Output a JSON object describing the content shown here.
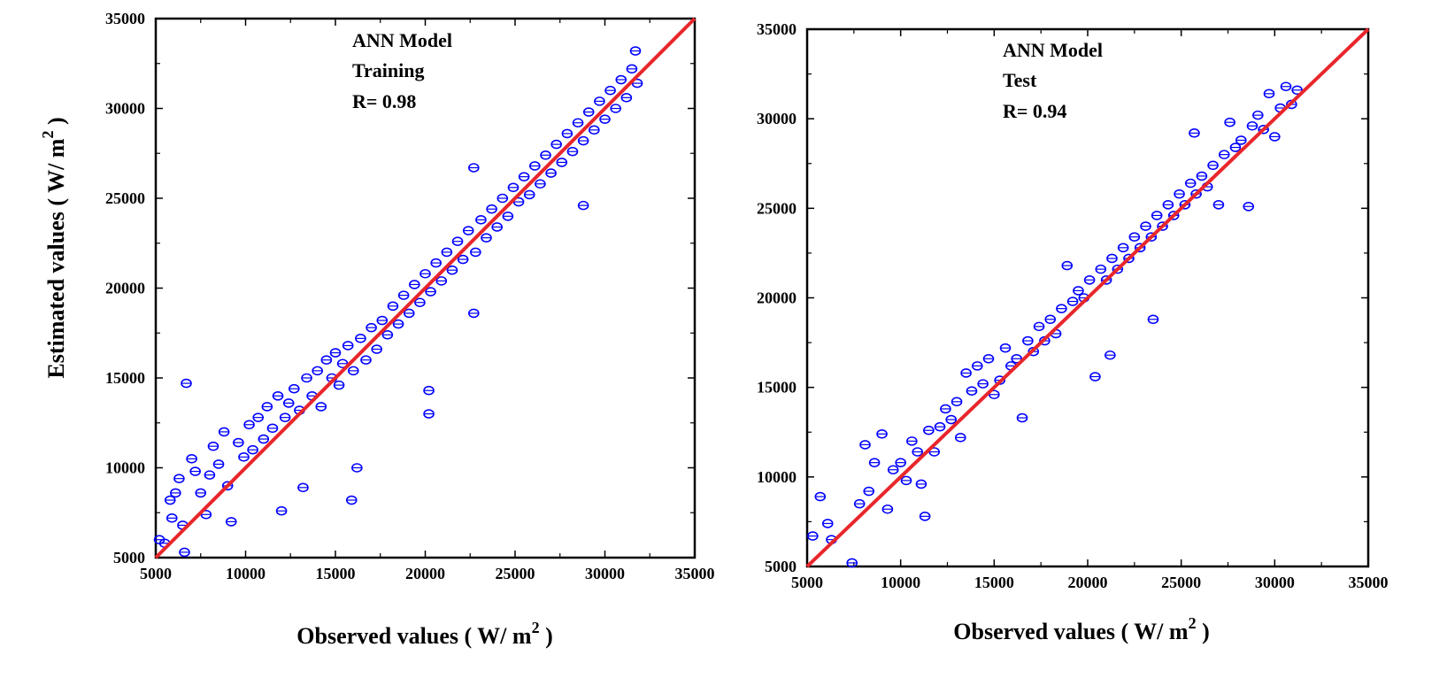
{
  "chart_data": [
    {
      "type": "scatter",
      "annotation": [
        "ANN Model",
        "Training",
        "R= 0.98"
      ],
      "xlabel": "Observed values ( W/ m",
      "ylabel": "Estimated values ( W/ m",
      "label_superscript": "2",
      "label_close": " )",
      "xlim": [
        5000,
        35000
      ],
      "ylim": [
        5000,
        35000
      ],
      "xticks": [
        "5000",
        "10000",
        "15000",
        "20000",
        "25000",
        "30000",
        "35000"
      ],
      "yticks": [
        "5000",
        "10000",
        "15000",
        "20000",
        "25000",
        "30000",
        "35000"
      ],
      "fit_line": [
        [
          5000,
          5000
        ],
        [
          35000,
          35000
        ]
      ],
      "grid": false,
      "series": [
        {
          "marker": "open-circle",
          "points": [
            [
              5200,
              6000
            ],
            [
              5500,
              5800
            ],
            [
              5800,
              8200
            ],
            [
              5900,
              7200
            ],
            [
              6100,
              8600
            ],
            [
              6300,
              9400
            ],
            [
              6500,
              6800
            ],
            [
              6700,
              14700
            ],
            [
              6600,
              5300
            ],
            [
              7000,
              10500
            ],
            [
              7200,
              9800
            ],
            [
              7500,
              8600
            ],
            [
              7800,
              7400
            ],
            [
              8000,
              9600
            ],
            [
              8200,
              11200
            ],
            [
              8500,
              10200
            ],
            [
              8800,
              12000
            ],
            [
              9000,
              9000
            ],
            [
              9200,
              7000
            ],
            [
              9600,
              11400
            ],
            [
              9900,
              10600
            ],
            [
              10200,
              12400
            ],
            [
              10400,
              11000
            ],
            [
              10700,
              12800
            ],
            [
              11000,
              11600
            ],
            [
              11200,
              13400
            ],
            [
              11500,
              12200
            ],
            [
              11800,
              14000
            ],
            [
              12000,
              7600
            ],
            [
              12200,
              12800
            ],
            [
              12400,
              13600
            ],
            [
              12700,
              14400
            ],
            [
              13000,
              13200
            ],
            [
              13200,
              8900
            ],
            [
              13400,
              15000
            ],
            [
              13700,
              14000
            ],
            [
              14000,
              15400
            ],
            [
              14200,
              13400
            ],
            [
              14500,
              16000
            ],
            [
              14800,
              15000
            ],
            [
              15000,
              16400
            ],
            [
              15200,
              14600
            ],
            [
              15400,
              15800
            ],
            [
              15700,
              16800
            ],
            [
              15900,
              8200
            ],
            [
              16000,
              15400
            ],
            [
              16200,
              10000
            ],
            [
              16400,
              17200
            ],
            [
              16700,
              16000
            ],
            [
              17000,
              17800
            ],
            [
              17300,
              16600
            ],
            [
              17600,
              18200
            ],
            [
              17900,
              17400
            ],
            [
              18200,
              19000
            ],
            [
              18500,
              18000
            ],
            [
              18800,
              19600
            ],
            [
              19100,
              18600
            ],
            [
              19400,
              20200
            ],
            [
              19700,
              19200
            ],
            [
              20000,
              20800
            ],
            [
              20200,
              14300
            ],
            [
              20200,
              13000
            ],
            [
              20300,
              19800
            ],
            [
              20600,
              21400
            ],
            [
              20900,
              20400
            ],
            [
              21200,
              22000
            ],
            [
              21500,
              21000
            ],
            [
              21800,
              22600
            ],
            [
              22100,
              21600
            ],
            [
              22400,
              23200
            ],
            [
              22700,
              26700
            ],
            [
              22700,
              18600
            ],
            [
              22800,
              22000
            ],
            [
              23100,
              23800
            ],
            [
              23400,
              22800
            ],
            [
              23700,
              24400
            ],
            [
              24000,
              23400
            ],
            [
              24300,
              25000
            ],
            [
              24600,
              24000
            ],
            [
              24900,
              25600
            ],
            [
              25200,
              24800
            ],
            [
              25500,
              26200
            ],
            [
              25800,
              25200
            ],
            [
              26100,
              26800
            ],
            [
              26400,
              25800
            ],
            [
              26700,
              27400
            ],
            [
              27000,
              26400
            ],
            [
              27300,
              28000
            ],
            [
              27600,
              27000
            ],
            [
              27900,
              28600
            ],
            [
              28200,
              27600
            ],
            [
              28500,
              29200
            ],
            [
              28800,
              24600
            ],
            [
              28800,
              28200
            ],
            [
              29100,
              29800
            ],
            [
              29400,
              28800
            ],
            [
              29700,
              30400
            ],
            [
              30000,
              29400
            ],
            [
              30300,
              31000
            ],
            [
              30600,
              30000
            ],
            [
              30900,
              31600
            ],
            [
              31200,
              30600
            ],
            [
              31500,
              32200
            ],
            [
              31700,
              33200
            ],
            [
              31800,
              31400
            ]
          ]
        }
      ]
    },
    {
      "type": "scatter",
      "annotation": [
        "ANN Model",
        "Test",
        "R= 0.94"
      ],
      "xlabel": "Observed values ( W/ m",
      "ylabel": "",
      "label_superscript": "2",
      "label_close": " )",
      "xlim": [
        5000,
        35000
      ],
      "ylim": [
        5000,
        35000
      ],
      "xticks": [
        "5000",
        "10000",
        "15000",
        "20000",
        "25000",
        "30000",
        "35000"
      ],
      "yticks": [
        "5000",
        "10000",
        "15000",
        "20000",
        "25000",
        "30000",
        "35000"
      ],
      "fit_line": [
        [
          5000,
          5000
        ],
        [
          35000,
          35000
        ]
      ],
      "grid": false,
      "series": [
        {
          "marker": "open-circle",
          "points": [
            [
              5300,
              6700
            ],
            [
              5700,
              8900
            ],
            [
              6100,
              7400
            ],
            [
              6300,
              6500
            ],
            [
              7400,
              5200
            ],
            [
              7800,
              8500
            ],
            [
              8100,
              11800
            ],
            [
              8300,
              9200
            ],
            [
              8600,
              10800
            ],
            [
              9000,
              12400
            ],
            [
              9300,
              8200
            ],
            [
              9600,
              10400
            ],
            [
              10000,
              10800
            ],
            [
              10300,
              9800
            ],
            [
              10600,
              12000
            ],
            [
              10900,
              11400
            ],
            [
              11100,
              9600
            ],
            [
              11300,
              7800
            ],
            [
              11500,
              12600
            ],
            [
              11800,
              11400
            ],
            [
              12100,
              12800
            ],
            [
              12400,
              13800
            ],
            [
              12700,
              13200
            ],
            [
              13000,
              14200
            ],
            [
              13200,
              12200
            ],
            [
              13500,
              15800
            ],
            [
              13800,
              14800
            ],
            [
              14100,
              16200
            ],
            [
              14400,
              15200
            ],
            [
              14700,
              16600
            ],
            [
              15000,
              14600
            ],
            [
              15300,
              15400
            ],
            [
              15600,
              17200
            ],
            [
              15900,
              16200
            ],
            [
              16200,
              16600
            ],
            [
              16500,
              13300
            ],
            [
              16800,
              17600
            ],
            [
              17100,
              17000
            ],
            [
              17400,
              18400
            ],
            [
              17700,
              17600
            ],
            [
              18000,
              18800
            ],
            [
              18300,
              18000
            ],
            [
              18600,
              19400
            ],
            [
              18900,
              21800
            ],
            [
              19200,
              19800
            ],
            [
              19500,
              20400
            ],
            [
              19800,
              20000
            ],
            [
              20100,
              21000
            ],
            [
              20400,
              15600
            ],
            [
              20700,
              21600
            ],
            [
              21000,
              21000
            ],
            [
              21200,
              16800
            ],
            [
              21300,
              22200
            ],
            [
              21600,
              21600
            ],
            [
              21900,
              22800
            ],
            [
              22200,
              22200
            ],
            [
              22500,
              23400
            ],
            [
              22800,
              22800
            ],
            [
              23100,
              24000
            ],
            [
              23500,
              18800
            ],
            [
              23400,
              23400
            ],
            [
              23700,
              24600
            ],
            [
              24000,
              24000
            ],
            [
              24300,
              25200
            ],
            [
              24600,
              24600
            ],
            [
              24900,
              25800
            ],
            [
              25200,
              25200
            ],
            [
              25500,
              26400
            ],
            [
              25700,
              29200
            ],
            [
              25800,
              25800
            ],
            [
              26100,
              26800
            ],
            [
              26400,
              26200
            ],
            [
              26700,
              27400
            ],
            [
              27000,
              25200
            ],
            [
              27300,
              28000
            ],
            [
              27600,
              29800
            ],
            [
              27900,
              28400
            ],
            [
              28200,
              28800
            ],
            [
              28600,
              25100
            ],
            [
              28800,
              29600
            ],
            [
              29100,
              30200
            ],
            [
              29400,
              29400
            ],
            [
              29700,
              31400
            ],
            [
              30000,
              29000
            ],
            [
              30300,
              30600
            ],
            [
              30600,
              31800
            ],
            [
              30900,
              30800
            ],
            [
              31200,
              31600
            ]
          ]
        }
      ]
    }
  ]
}
